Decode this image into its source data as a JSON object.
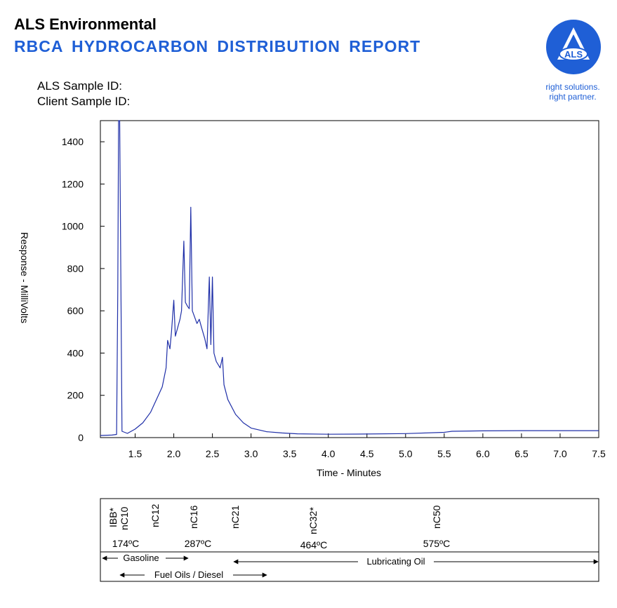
{
  "header": {
    "company": "ALS Environmental",
    "report_title": "RBCA HYDROCARBON  DISTRIBUTION  REPORT",
    "sample_id_label": "ALS Sample ID:",
    "client_sample_id_label": "Client Sample ID:"
  },
  "logo": {
    "text": "ALS",
    "tagline_line1": "right solutions.",
    "tagline_line2": "right partner.",
    "color": "#1f5fd6"
  },
  "chart_data": {
    "type": "line",
    "title": "",
    "xlabel": "Time - Minutes",
    "ylabel": "Response - MilliVolts",
    "xlim": [
      1.05,
      7.5
    ],
    "ylim": [
      0,
      1500
    ],
    "x_ticks": [
      1.5,
      2.0,
      2.5,
      3.0,
      3.5,
      4.0,
      4.5,
      5.0,
      5.5,
      6.0,
      6.5,
      7.0,
      7.5
    ],
    "x_tick_labels": [
      "1.5",
      "2.0",
      "2.5",
      "3.0",
      "3.5",
      "4.0",
      "4.5",
      "5.0",
      "5.5",
      "6.0",
      "6.5",
      "7.0",
      "7.5"
    ],
    "y_ticks": [
      0,
      200,
      400,
      600,
      800,
      1000,
      1200,
      1400
    ],
    "y_tick_labels": [
      "0",
      "200",
      "400",
      "600",
      "800",
      "1000",
      "1200",
      "1400"
    ],
    "grid": false,
    "line_color": "#1f2fa8",
    "series": [
      {
        "x": [
          1.05,
          1.2,
          1.26,
          1.275,
          1.285,
          1.3,
          1.33,
          1.4,
          1.5,
          1.6,
          1.7,
          1.8,
          1.85,
          1.9,
          1.92,
          1.95,
          1.97,
          2.0,
          2.02,
          2.05,
          2.08,
          2.1,
          2.13,
          2.15,
          2.18,
          2.2,
          2.22,
          2.24,
          2.26,
          2.3,
          2.33,
          2.36,
          2.4,
          2.43,
          2.46,
          2.48,
          2.5,
          2.52,
          2.55,
          2.6,
          2.63,
          2.65,
          2.7,
          2.8,
          2.9,
          3.0,
          3.2,
          3.4,
          3.6,
          4.0,
          4.5,
          5.0,
          5.5,
          5.6,
          6.0,
          6.5,
          7.0,
          7.5
        ],
        "y": [
          10,
          12,
          15,
          700,
          1500,
          1500,
          30,
          20,
          40,
          70,
          120,
          200,
          240,
          330,
          460,
          420,
          500,
          650,
          480,
          520,
          560,
          600,
          930,
          640,
          620,
          610,
          1090,
          600,
          580,
          540,
          560,
          520,
          470,
          420,
          760,
          440,
          760,
          400,
          360,
          330,
          380,
          250,
          180,
          110,
          70,
          45,
          28,
          22,
          18,
          16,
          17,
          19,
          25,
          30,
          32,
          33,
          33,
          33
        ]
      }
    ]
  },
  "ruler": {
    "markers": [
      "IBB*",
      "nC10",
      "nC12",
      "nC16",
      "nC21",
      "nC32*",
      "nC50"
    ],
    "temperatures": [
      "174ºC",
      "287ºC",
      "464ºC",
      "575ºC"
    ],
    "ranges": {
      "gasoline": "Gasoline",
      "fuel_oils": "Fuel Oils / Diesel",
      "lubricating": "Lubricating Oil"
    }
  }
}
